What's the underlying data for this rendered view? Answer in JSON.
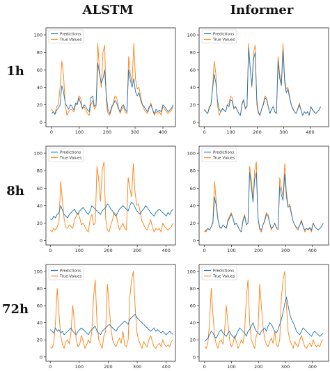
{
  "columns": [
    "ALSTM",
    "Informer"
  ],
  "rows": [
    "1h",
    "8h",
    "72h"
  ],
  "legend": {
    "pred": "Predictions",
    "true": "True Values"
  },
  "colors": {
    "pred": "#1f77b4",
    "true": "#ff7f0e"
  },
  "chart_data": [
    {
      "type": "line",
      "panel": "ALSTM 1h",
      "series": [
        {
          "name": "Predictions",
          "values": [
            10,
            12,
            9,
            14,
            16,
            20,
            42,
            35,
            22,
            18,
            15,
            20,
            18,
            14,
            22,
            20,
            28,
            22,
            16,
            20,
            18,
            14,
            12,
            28,
            30,
            18,
            20,
            68,
            55,
            45,
            50,
            60,
            30,
            14,
            10,
            18,
            20,
            25,
            22,
            16,
            12,
            18,
            20,
            15,
            12,
            60,
            48,
            40,
            50,
            35,
            30,
            34,
            25,
            20,
            18,
            15,
            12,
            18,
            20,
            14,
            10,
            15,
            12,
            14,
            12,
            20,
            18,
            15,
            12,
            14,
            16,
            20
          ]
        },
        {
          "name": "True Values",
          "values": [
            15,
            12,
            10,
            18,
            20,
            40,
            70,
            55,
            20,
            8,
            12,
            15,
            14,
            12,
            20,
            22,
            30,
            28,
            15,
            18,
            14,
            10,
            8,
            20,
            25,
            15,
            18,
            90,
            60,
            40,
            80,
            88,
            20,
            10,
            8,
            15,
            22,
            30,
            28,
            18,
            10,
            15,
            18,
            12,
            10,
            75,
            55,
            45,
            90,
            50,
            38,
            40,
            30,
            20,
            15,
            12,
            10,
            16,
            22,
            14,
            8,
            12,
            10,
            12,
            8,
            18,
            15,
            12,
            10,
            12,
            14,
            18
          ]
        }
      ],
      "xlim": [
        -20,
        445
      ],
      "ylim": [
        -5,
        108
      ],
      "xticks": [
        0,
        100,
        200,
        300,
        400
      ],
      "yticks": [
        0,
        20,
        40,
        60,
        80,
        100
      ]
    },
    {
      "type": "line",
      "panel": "Informer 1h",
      "series": [
        {
          "name": "Predictions",
          "values": [
            14,
            12,
            10,
            16,
            20,
            38,
            55,
            45,
            25,
            15,
            12,
            16,
            14,
            12,
            20,
            18,
            26,
            24,
            16,
            18,
            14,
            10,
            8,
            22,
            26,
            16,
            18,
            85,
            60,
            42,
            72,
            80,
            25,
            12,
            8,
            16,
            20,
            28,
            26,
            18,
            10,
            15,
            18,
            12,
            10,
            70,
            50,
            42,
            82,
            46,
            34,
            38,
            28,
            20,
            16,
            12,
            10,
            15,
            20,
            14,
            8,
            12,
            10,
            12,
            8,
            18,
            14,
            12,
            10,
            12,
            14,
            18
          ]
        },
        {
          "name": "True Values",
          "values": [
            15,
            12,
            10,
            18,
            20,
            40,
            70,
            55,
            20,
            8,
            12,
            15,
            14,
            12,
            20,
            22,
            30,
            28,
            15,
            18,
            14,
            10,
            8,
            20,
            25,
            15,
            18,
            90,
            60,
            40,
            80,
            88,
            20,
            10,
            8,
            15,
            22,
            30,
            28,
            18,
            10,
            15,
            18,
            12,
            10,
            75,
            55,
            45,
            90,
            50,
            38,
            40,
            30,
            20,
            15,
            12,
            10,
            16,
            22,
            14,
            8,
            12,
            10,
            12,
            8,
            18,
            15,
            12,
            10,
            12,
            14,
            18
          ]
        }
      ],
      "xlim": [
        -20,
        470
      ],
      "ylim": [
        -5,
        108
      ],
      "xticks": [
        0,
        100,
        200,
        300,
        400
      ],
      "yticks": [
        0,
        20,
        40,
        60,
        80,
        100
      ]
    },
    {
      "type": "line",
      "panel": "ALSTM 8h",
      "series": [
        {
          "name": "Predictions",
          "values": [
            25,
            24,
            28,
            26,
            30,
            32,
            40,
            35,
            30,
            28,
            26,
            30,
            32,
            34,
            36,
            32,
            30,
            34,
            36,
            38,
            35,
            32,
            30,
            34,
            40,
            38,
            36,
            34,
            32,
            30,
            34,
            36,
            38,
            42,
            40,
            36,
            34,
            30,
            28,
            32,
            36,
            38,
            40,
            38,
            36,
            34,
            40,
            44,
            42,
            38,
            34,
            32,
            30,
            34,
            36,
            40,
            38,
            35,
            32,
            30,
            28,
            32,
            34,
            36,
            34,
            32,
            30,
            28,
            32,
            30,
            34,
            36
          ]
        },
        {
          "name": "True Values",
          "values": [
            12,
            10,
            14,
            12,
            16,
            22,
            68,
            45,
            25,
            15,
            14,
            18,
            16,
            14,
            24,
            28,
            32,
            26,
            18,
            20,
            16,
            12,
            10,
            24,
            30,
            18,
            20,
            85,
            70,
            45,
            80,
            90,
            25,
            12,
            10,
            18,
            24,
            32,
            30,
            20,
            12,
            16,
            20,
            14,
            12,
            72,
            60,
            50,
            88,
            55,
            40,
            42,
            32,
            22,
            18,
            14,
            12,
            18,
            24,
            16,
            10,
            14,
            12,
            14,
            10,
            20,
            16,
            14,
            12,
            14,
            16,
            20
          ]
        }
      ],
      "xlim": [
        -15,
        432
      ],
      "ylim": [
        -5,
        108
      ],
      "xticks": [
        0,
        100,
        200,
        300,
        400
      ],
      "yticks": [
        0,
        20,
        40,
        60,
        80,
        100
      ]
    },
    {
      "type": "line",
      "panel": "Informer 8h",
      "series": [
        {
          "name": "Predictions",
          "values": [
            10,
            12,
            14,
            12,
            16,
            20,
            50,
            40,
            24,
            16,
            14,
            18,
            16,
            14,
            22,
            26,
            30,
            26,
            18,
            20,
            16,
            12,
            10,
            22,
            28,
            18,
            20,
            78,
            62,
            44,
            70,
            78,
            26,
            14,
            12,
            18,
            22,
            30,
            28,
            20,
            14,
            16,
            20,
            15,
            14,
            62,
            52,
            46,
            76,
            50,
            38,
            40,
            30,
            22,
            18,
            15,
            14,
            18,
            22,
            16,
            12,
            14,
            13,
            15,
            12,
            20,
            16,
            14,
            12,
            14,
            16,
            20
          ]
        },
        {
          "name": "True Values",
          "values": [
            12,
            10,
            14,
            12,
            16,
            22,
            68,
            45,
            25,
            15,
            14,
            18,
            16,
            14,
            24,
            28,
            32,
            26,
            18,
            20,
            16,
            12,
            10,
            24,
            30,
            18,
            20,
            85,
            70,
            45,
            80,
            90,
            25,
            12,
            10,
            18,
            24,
            32,
            30,
            20,
            12,
            16,
            20,
            14,
            12,
            72,
            60,
            50,
            88,
            55,
            40,
            42,
            32,
            22,
            18,
            14,
            12,
            18,
            24,
            16,
            10,
            14,
            12,
            14,
            10,
            20,
            16,
            14,
            12,
            14,
            16,
            20
          ]
        }
      ],
      "xlim": [
        -20,
        460
      ],
      "ylim": [
        -5,
        108
      ],
      "xticks": [
        0,
        100,
        200,
        300,
        400
      ],
      "yticks": [
        0,
        20,
        40,
        60,
        80,
        100
      ]
    },
    {
      "type": "line",
      "panel": "ALSTM 72h",
      "series": [
        {
          "name": "Predictions",
          "values": [
            32,
            30,
            28,
            34,
            30,
            32,
            28,
            30,
            26,
            28,
            30,
            32,
            34,
            30,
            28,
            26,
            30,
            32,
            34,
            32,
            30,
            28,
            26,
            30,
            32,
            34,
            36,
            30,
            28,
            26,
            30,
            32,
            34,
            36,
            38,
            36,
            34,
            32,
            30,
            34,
            36,
            38,
            40,
            42,
            40,
            38,
            44,
            46,
            48,
            50,
            46,
            44,
            42,
            40,
            38,
            36,
            34,
            32,
            30,
            32,
            34,
            30,
            32,
            30,
            28,
            30,
            28,
            26,
            28,
            30,
            28,
            26
          ]
        },
        {
          "name": "True Values",
          "values": [
            12,
            10,
            16,
            40,
            80,
            50,
            25,
            15,
            10,
            18,
            20,
            15,
            30,
            60,
            40,
            20,
            12,
            15,
            25,
            18,
            10,
            14,
            20,
            16,
            30,
            70,
            90,
            40,
            20,
            15,
            10,
            25,
            30,
            85,
            60,
            35,
            20,
            15,
            12,
            18,
            22,
            16,
            30,
            14,
            12,
            20,
            70,
            90,
            100,
            60,
            30,
            20,
            15,
            10,
            18,
            14,
            12,
            20,
            25,
            18,
            12,
            10,
            14,
            16,
            12,
            20,
            15,
            12,
            14,
            12,
            18,
            20
          ]
        }
      ],
      "xlim": [
        -15,
        432
      ],
      "ylim": [
        -5,
        108
      ],
      "xticks": [
        0,
        100,
        200,
        300,
        400
      ],
      "yticks": [
        0,
        20,
        40,
        60,
        80,
        100
      ]
    },
    {
      "type": "line",
      "panel": "Informer 72h",
      "series": [
        {
          "name": "Predictions",
          "values": [
            18,
            20,
            22,
            26,
            30,
            28,
            24,
            22,
            26,
            30,
            32,
            28,
            26,
            24,
            28,
            30,
            26,
            24,
            22,
            26,
            30,
            34,
            32,
            30,
            28,
            24,
            30,
            32,
            36,
            40,
            34,
            30,
            28,
            26,
            30,
            32,
            34,
            30,
            36,
            40,
            38,
            34,
            30,
            28,
            32,
            38,
            44,
            52,
            62,
            70,
            60,
            50,
            44,
            40,
            36,
            30,
            28,
            26,
            30,
            34,
            32,
            30,
            28,
            26,
            24,
            28,
            30,
            28,
            26,
            24,
            26,
            28
          ]
        },
        {
          "name": "True Values",
          "values": [
            12,
            10,
            16,
            40,
            80,
            50,
            25,
            15,
            10,
            18,
            20,
            15,
            30,
            60,
            40,
            20,
            12,
            15,
            25,
            18,
            10,
            14,
            20,
            16,
            30,
            70,
            90,
            40,
            20,
            15,
            10,
            25,
            30,
            85,
            60,
            35,
            20,
            15,
            12,
            18,
            22,
            16,
            30,
            14,
            12,
            20,
            70,
            90,
            100,
            60,
            30,
            20,
            15,
            10,
            18,
            14,
            12,
            20,
            25,
            18,
            12,
            10,
            14,
            16,
            12,
            20,
            15,
            12,
            14,
            12,
            18,
            20
          ]
        }
      ],
      "xlim": [
        -20,
        460
      ],
      "ylim": [
        -5,
        108
      ],
      "xticks": [
        0,
        100,
        200,
        300,
        400
      ],
      "yticks": [
        0,
        20,
        40,
        60,
        80,
        100
      ]
    }
  ]
}
